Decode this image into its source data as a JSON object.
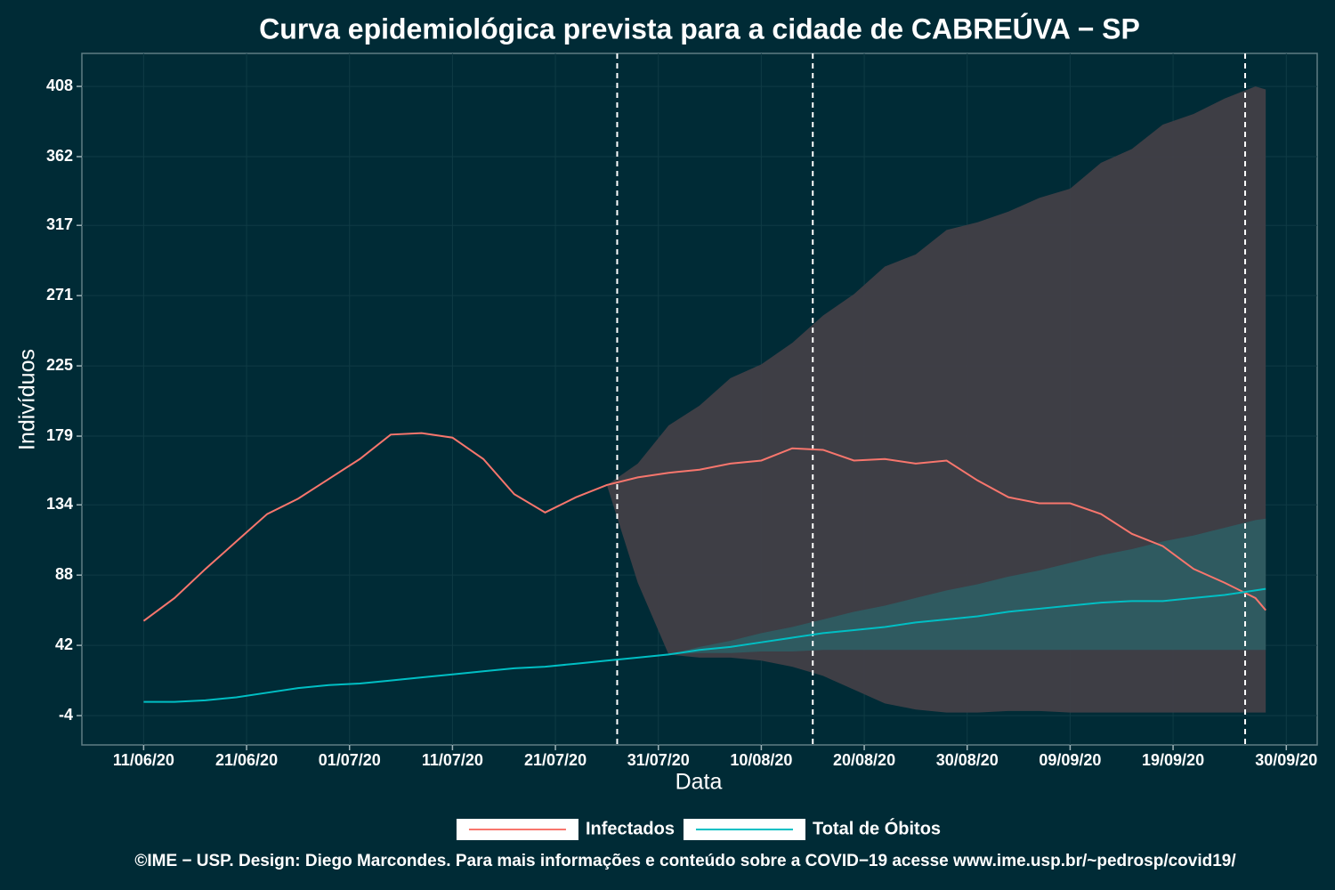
{
  "chart_data": {
    "type": "line",
    "title": "Curva epidemiológica prevista para a cidade de CABREÚVA − SP",
    "x_label": "Data",
    "y_label": "Indivíduos",
    "caption": "©IME − USP. Design: Diego Marcondes. Para mais informações e conteúdo sobre a COVID−19 acesse www.ime.usp.br/~pedrosp/covid19/",
    "x": [
      "2020-06-11",
      "2020-06-14",
      "2020-06-17",
      "2020-06-20",
      "2020-06-23",
      "2020-06-26",
      "2020-06-29",
      "2020-07-02",
      "2020-07-05",
      "2020-07-08",
      "2020-07-11",
      "2020-07-14",
      "2020-07-17",
      "2020-07-20",
      "2020-07-23",
      "2020-07-26",
      "2020-07-29",
      "2020-08-01",
      "2020-08-04",
      "2020-08-07",
      "2020-08-10",
      "2020-08-13",
      "2020-08-16",
      "2020-08-19",
      "2020-08-22",
      "2020-08-25",
      "2020-08-28",
      "2020-08-31",
      "2020-09-03",
      "2020-09-06",
      "2020-09-09",
      "2020-09-12",
      "2020-09-15",
      "2020-09-18",
      "2020-09-21",
      "2020-09-24",
      "2020-09-27",
      "2020-09-28"
    ],
    "xlim": [
      "2020-06-05",
      "2020-10-03"
    ],
    "xticks": [
      {
        "value": "2020-06-11",
        "label": "11/06/20"
      },
      {
        "value": "2020-06-21",
        "label": "21/06/20"
      },
      {
        "value": "2020-07-01",
        "label": "01/07/20"
      },
      {
        "value": "2020-07-11",
        "label": "11/07/20"
      },
      {
        "value": "2020-07-21",
        "label": "21/07/20"
      },
      {
        "value": "2020-07-31",
        "label": "31/07/20"
      },
      {
        "value": "2020-08-10",
        "label": "10/08/20"
      },
      {
        "value": "2020-08-20",
        "label": "20/08/20"
      },
      {
        "value": "2020-08-30",
        "label": "30/08/20"
      },
      {
        "value": "2020-09-09",
        "label": "09/09/20"
      },
      {
        "value": "2020-09-19",
        "label": "19/09/20"
      },
      {
        "value": "2020-09-30",
        "label": "30/09/20"
      }
    ],
    "ylim": [
      -23.2,
      429.6
    ],
    "yticks": [
      -4,
      42,
      88,
      134,
      179,
      225,
      271,
      317,
      362,
      408
    ],
    "vlines": [
      "2020-07-27",
      "2020-08-15",
      "2020-09-26"
    ],
    "grid": true,
    "legend": "bottom",
    "series": [
      {
        "name": "Infectados",
        "color": "#f8766d",
        "band_color": "#413f47",
        "values": [
          58,
          73,
          92,
          110,
          128,
          138,
          151,
          164,
          180,
          181,
          178,
          164,
          141,
          129,
          139,
          147,
          152,
          155,
          157,
          161,
          163,
          171,
          170,
          163,
          164,
          161,
          163,
          150,
          139,
          135,
          135,
          128,
          115,
          107,
          92,
          83,
          73,
          65
        ],
        "upper": [
          null,
          null,
          null,
          null,
          null,
          null,
          null,
          null,
          null,
          null,
          null,
          null,
          null,
          null,
          null,
          147,
          161,
          186,
          199,
          217,
          226,
          240,
          258,
          272,
          290,
          298,
          314,
          319,
          326,
          335,
          341,
          358,
          367,
          383,
          390,
          400,
          408,
          406
        ],
        "lower": [
          null,
          null,
          null,
          null,
          null,
          null,
          null,
          null,
          null,
          null,
          null,
          null,
          null,
          null,
          null,
          147,
          83,
          36,
          34,
          34,
          32,
          28,
          22,
          13,
          4,
          0,
          -2,
          -2,
          -1,
          -1,
          -2,
          -2,
          -2,
          -2,
          -2,
          -2,
          -2,
          -2
        ]
      },
      {
        "name": "Total de Óbitos",
        "color": "#00bfc4",
        "band_color": "#2e5c62",
        "values": [
          5,
          5,
          6,
          8,
          11,
          14,
          16,
          17,
          19,
          21,
          23,
          25,
          27,
          28,
          30,
          32,
          34,
          36,
          39,
          41,
          44,
          47,
          50,
          52,
          54,
          57,
          59,
          61,
          64,
          66,
          68,
          70,
          71,
          71,
          73,
          75,
          78,
          79
        ],
        "upper": [
          null,
          null,
          null,
          null,
          null,
          null,
          null,
          null,
          null,
          null,
          null,
          null,
          null,
          null,
          null,
          null,
          null,
          36,
          41,
          45,
          50,
          54,
          59,
          64,
          68,
          73,
          78,
          82,
          87,
          91,
          96,
          101,
          105,
          110,
          114,
          119,
          124,
          125
        ],
        "lower": [
          null,
          null,
          null,
          null,
          null,
          null,
          null,
          null,
          null,
          null,
          null,
          null,
          null,
          null,
          null,
          null,
          null,
          36,
          37,
          37,
          38,
          38,
          39,
          39,
          39,
          39,
          39,
          39,
          39,
          39,
          39,
          39,
          39,
          39,
          39,
          39,
          39,
          39
        ]
      }
    ]
  }
}
